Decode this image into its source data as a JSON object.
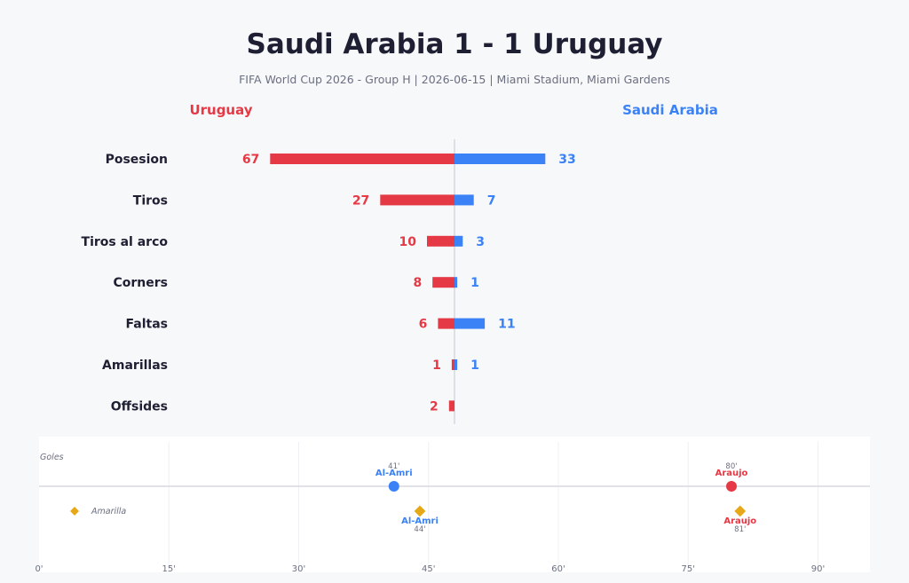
{
  "header": {
    "title": "Saudi Arabia 1  -  1 Uruguay",
    "subtitle": "FIFA World Cup 2026 - Group H  |  2026-06-15  |  Miami Stadium, Miami Gardens",
    "left_team": "Uruguay",
    "right_team": "Saudi Arabia"
  },
  "colors": {
    "uruguay": "#e53945",
    "saudi_arabia": "#3b82f6",
    "yellow_card": "#e6a817"
  },
  "chart_data": [
    {
      "type": "bar",
      "orientation": "horizontal-diverging",
      "categories": [
        "Posesion",
        "Tiros",
        "Tiros al arco",
        "Corners",
        "Faltas",
        "Amarillas",
        "Offsides"
      ],
      "series": [
        {
          "name": "Uruguay",
          "side": "left",
          "values": [
            67,
            27,
            10,
            8,
            6,
            1,
            2
          ]
        },
        {
          "name": "Saudi Arabia",
          "side": "right",
          "values": [
            33,
            7,
            3,
            1,
            11,
            1,
            0
          ]
        }
      ],
      "show_zero_labels": false
    },
    {
      "type": "scatter",
      "title": "Goles",
      "x_ticks": [
        "0'",
        "15'",
        "30'",
        "45'",
        "60'",
        "75'",
        "90'"
      ],
      "xlim": [
        0,
        96
      ],
      "legend": {
        "label": "Amarilla",
        "placement": "left"
      },
      "goals": [
        {
          "player": "Al-Amri",
          "minute": 41,
          "minute_label": "41'",
          "team": "Saudi Arabia"
        },
        {
          "player": "Araujo",
          "minute": 80,
          "minute_label": "80'",
          "team": "Uruguay"
        }
      ],
      "yellow_cards": [
        {
          "player": "Al-Amri",
          "minute": 44,
          "minute_label": "44'",
          "team": "Saudi Arabia"
        },
        {
          "player": "Araujo",
          "minute": 81,
          "minute_label": "81'",
          "team": "Uruguay"
        }
      ]
    }
  ]
}
